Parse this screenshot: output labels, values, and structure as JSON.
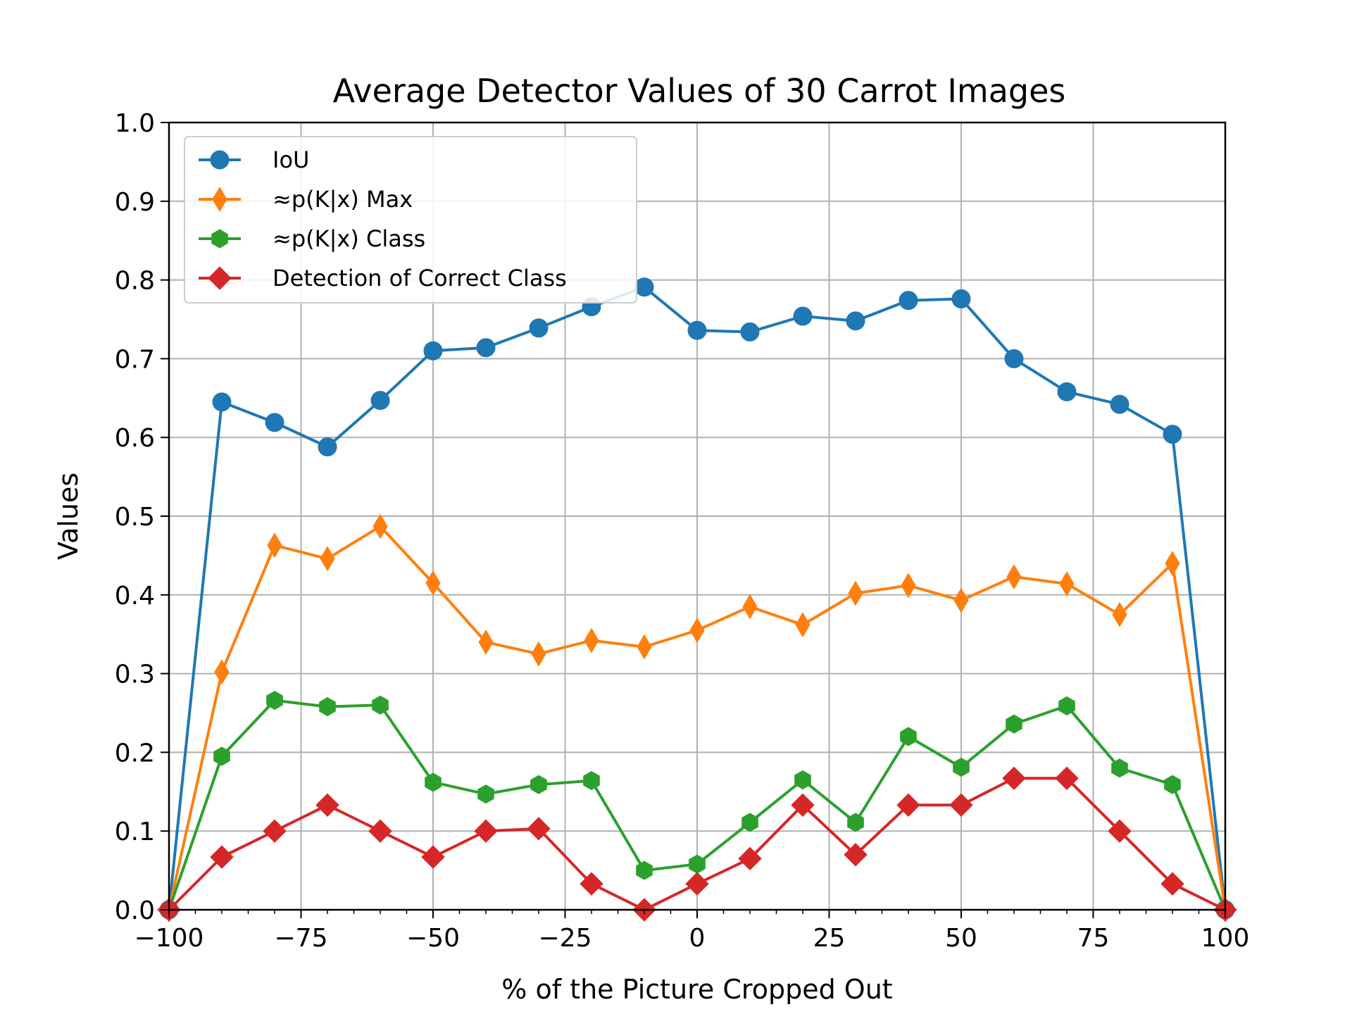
{
  "chart_data": {
    "type": "line",
    "title": "Average Detector Values of 30 Carrot Images",
    "xlabel": "% of the Picture Cropped Out",
    "ylabel": "Values",
    "xlim": [
      -100,
      100
    ],
    "ylim": [
      0.0,
      1.0
    ],
    "grid": true,
    "legend_position": "upper-left",
    "x_ticks": [
      "−100",
      "−75",
      "−50",
      "−25",
      "0",
      "25",
      "50",
      "75",
      "100"
    ],
    "y_ticks": [
      "0.0",
      "0.1",
      "0.2",
      "0.3",
      "0.4",
      "0.5",
      "0.6",
      "0.7",
      "0.8",
      "0.9",
      "1.0"
    ],
    "x": [
      -100,
      -90,
      -80,
      -70,
      -60,
      -50,
      -40,
      -30,
      -20,
      -10,
      0,
      10,
      20,
      30,
      40,
      50,
      60,
      70,
      80,
      90,
      100
    ],
    "series": [
      {
        "name": "IoU",
        "color": "#1f77b4",
        "marker": "circle",
        "values": [
          0.0,
          0.645,
          0.619,
          0.588,
          0.647,
          0.71,
          0.714,
          0.739,
          0.766,
          0.791,
          0.736,
          0.734,
          0.754,
          0.748,
          0.774,
          0.776,
          0.7,
          0.658,
          0.642,
          0.604,
          0.0
        ]
      },
      {
        "name": "≈p(K|x) Max",
        "color": "#ff7f0e",
        "marker": "thin-diamond",
        "values": [
          0.0,
          0.302,
          0.463,
          0.446,
          0.487,
          0.415,
          0.34,
          0.325,
          0.342,
          0.334,
          0.355,
          0.385,
          0.362,
          0.402,
          0.412,
          0.393,
          0.423,
          0.414,
          0.375,
          0.44,
          0.0
        ]
      },
      {
        "name": "≈p(K|x) Class",
        "color": "#2ca02c",
        "marker": "hexagon",
        "values": [
          0.0,
          0.195,
          0.266,
          0.258,
          0.26,
          0.162,
          0.147,
          0.159,
          0.164,
          0.05,
          0.058,
          0.111,
          0.165,
          0.111,
          0.22,
          0.181,
          0.236,
          0.259,
          0.18,
          0.159,
          0.0
        ]
      },
      {
        "name": "Detection of Correct Class",
        "color": "#d62728",
        "marker": "diamond",
        "values": [
          0.0,
          0.067,
          0.1,
          0.133,
          0.1,
          0.067,
          0.1,
          0.103,
          0.033,
          0.0,
          0.033,
          0.065,
          0.133,
          0.07,
          0.133,
          0.133,
          0.167,
          0.167,
          0.1,
          0.033,
          0.0
        ]
      }
    ]
  }
}
